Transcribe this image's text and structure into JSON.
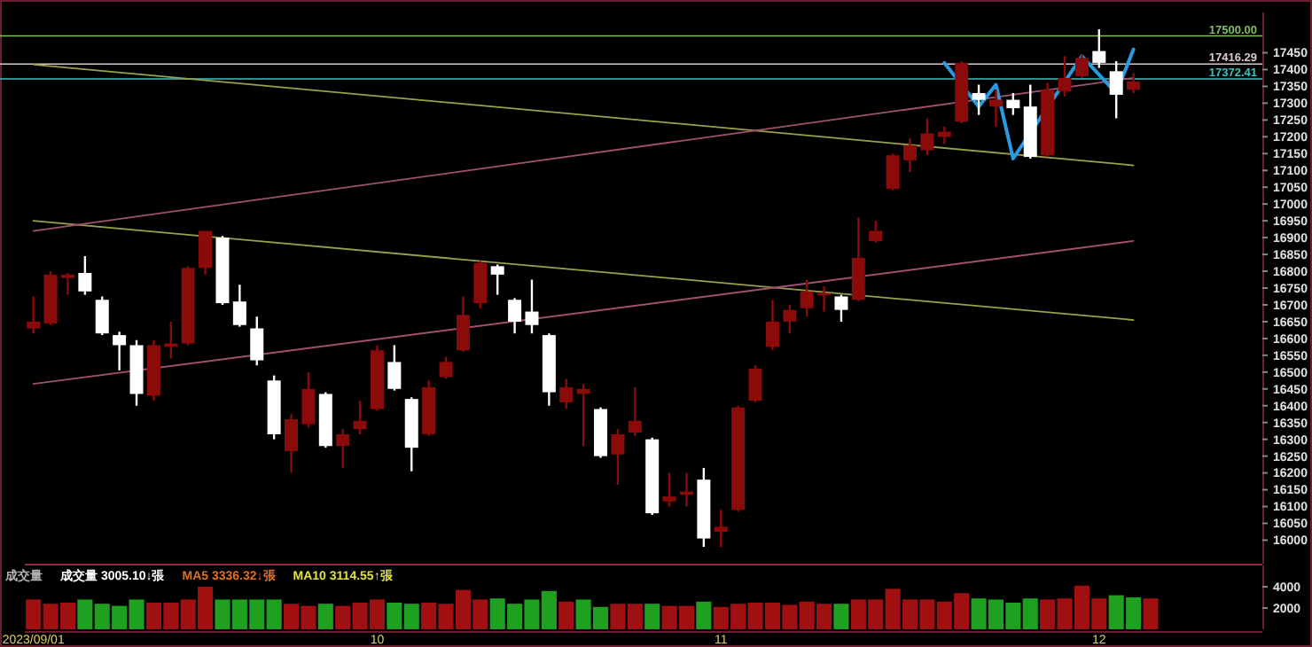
{
  "chart_data": [
    {
      "type": "candlestick",
      "categories": [
        null,
        null,
        null,
        null,
        null,
        null,
        null,
        null,
        null,
        null,
        null,
        null,
        null,
        null,
        null,
        null,
        null,
        null,
        null,
        null,
        null,
        null,
        null,
        null,
        null,
        null,
        null,
        null,
        null,
        null,
        null,
        null,
        null,
        null,
        null,
        null,
        null,
        null,
        null,
        null,
        null,
        null,
        null,
        null,
        null,
        null,
        null,
        null,
        null,
        null,
        null,
        null,
        null,
        null,
        null,
        null,
        null,
        null,
        null,
        null,
        null,
        null,
        null,
        null,
        null,
        null,
        null,
        null,
        null,
        null,
        null,
        null
      ],
      "ohlc": [
        [
          16630,
          16725,
          16615,
          16650
        ],
        [
          16645,
          16800,
          16640,
          16790
        ],
        [
          16780,
          16795,
          16730,
          16790
        ],
        [
          16795,
          16845,
          16730,
          16740
        ],
        [
          16715,
          16725,
          16610,
          16615
        ],
        [
          16610,
          16620,
          16505,
          16580
        ],
        [
          16580,
          16595,
          16400,
          16435
        ],
        [
          16430,
          16595,
          16415,
          16580
        ],
        [
          16575,
          16650,
          16540,
          16585
        ],
        [
          16585,
          16815,
          16580,
          16810
        ],
        [
          16810,
          16920,
          16790,
          16920
        ],
        [
          16900,
          16905,
          16700,
          16705
        ],
        [
          16710,
          16760,
          16635,
          16640
        ],
        [
          16630,
          16665,
          16520,
          16535
        ],
        [
          16475,
          16490,
          16300,
          16315
        ],
        [
          16265,
          16375,
          16200,
          16360
        ],
        [
          16345,
          16500,
          16335,
          16450
        ],
        [
          16435,
          16440,
          16275,
          16280
        ],
        [
          16280,
          16330,
          16215,
          16315
        ],
        [
          16330,
          16415,
          16315,
          16355
        ],
        [
          16390,
          16580,
          16385,
          16565
        ],
        [
          16530,
          16580,
          16445,
          16450
        ],
        [
          16420,
          16425,
          16205,
          16275
        ],
        [
          16315,
          16475,
          16310,
          16455
        ],
        [
          16485,
          16545,
          16480,
          16530
        ],
        [
          16565,
          16725,
          16560,
          16670
        ],
        [
          16705,
          16830,
          16690,
          16825
        ],
        [
          16815,
          16820,
          16730,
          16790
        ],
        [
          16715,
          16720,
          16615,
          16650
        ],
        [
          16680,
          16775,
          16615,
          16640
        ],
        [
          16610,
          16615,
          16400,
          16440
        ],
        [
          16410,
          16480,
          16390,
          16455
        ],
        [
          16435,
          16465,
          16280,
          16450
        ],
        [
          16390,
          16395,
          16245,
          16250
        ],
        [
          16255,
          16330,
          16165,
          16315
        ],
        [
          16320,
          16455,
          16310,
          16355
        ],
        [
          16300,
          16305,
          16075,
          16080
        ],
        [
          16115,
          16200,
          16100,
          16130
        ],
        [
          16135,
          16200,
          16100,
          16145
        ],
        [
          16180,
          16215,
          15980,
          16005
        ],
        [
          16025,
          16090,
          15980,
          16040
        ],
        [
          16090,
          16400,
          16085,
          16395
        ],
        [
          16415,
          16520,
          16410,
          16510
        ],
        [
          16575,
          16715,
          16565,
          16650
        ],
        [
          16650,
          16700,
          16615,
          16685
        ],
        [
          16690,
          16775,
          16665,
          16740
        ],
        [
          16730,
          16755,
          16680,
          16735
        ],
        [
          16725,
          16730,
          16650,
          16685
        ],
        [
          16715,
          16960,
          16710,
          16840
        ],
        [
          16890,
          16950,
          16885,
          16920
        ],
        [
          17045,
          17150,
          17040,
          17145
        ],
        [
          17130,
          17195,
          17095,
          17175
        ],
        [
          17160,
          17255,
          17145,
          17210
        ],
        [
          17200,
          17230,
          17180,
          17215
        ],
        [
          17245,
          17425,
          17240,
          17420
        ],
        [
          17330,
          17355,
          17265,
          17310
        ],
        [
          17290,
          17340,
          17230,
          17310
        ],
        [
          17310,
          17330,
          17265,
          17285
        ],
        [
          17290,
          17355,
          17135,
          17140
        ],
        [
          17145,
          17360,
          17140,
          17340
        ],
        [
          17335,
          17440,
          17320,
          17375
        ],
        [
          17380,
          17445,
          17375,
          17435
        ],
        [
          17455,
          17520,
          17405,
          17420
        ],
        [
          17395,
          17425,
          17255,
          17325
        ],
        [
          17340,
          17390,
          17330,
          17365
        ],
        null,
        null,
        null,
        null,
        null,
        null,
        null
      ],
      "series": [
        {
          "type": "line",
          "color": "#9aa04a",
          "values": [
            17415,
            null,
            null,
            null,
            null,
            null,
            null,
            null,
            null,
            null,
            null,
            null,
            null,
            null,
            null,
            null,
            null,
            null,
            null,
            null,
            null,
            null,
            null,
            null,
            null,
            null,
            null,
            null,
            null,
            null,
            null,
            null,
            null,
            null,
            null,
            null,
            null,
            null,
            null,
            null,
            null,
            null,
            null,
            null,
            null,
            null,
            null,
            null,
            null,
            null,
            null,
            null,
            null,
            null,
            null,
            null,
            null,
            null,
            null,
            null,
            null,
            null,
            null,
            null,
            17115,
            null,
            null,
            null,
            null,
            null,
            null,
            null
          ]
        },
        {
          "type": "line",
          "color": "#9aa04a",
          "values": [
            16950,
            null,
            null,
            null,
            null,
            null,
            null,
            null,
            null,
            null,
            null,
            null,
            null,
            null,
            null,
            null,
            null,
            null,
            null,
            null,
            null,
            null,
            null,
            null,
            null,
            null,
            null,
            null,
            null,
            null,
            null,
            null,
            null,
            null,
            null,
            null,
            null,
            null,
            null,
            null,
            null,
            null,
            null,
            null,
            null,
            null,
            null,
            null,
            null,
            null,
            null,
            null,
            null,
            null,
            null,
            null,
            null,
            null,
            null,
            null,
            null,
            null,
            null,
            null,
            16655,
            null,
            null,
            null,
            null,
            null,
            null,
            null
          ]
        },
        {
          "type": "line",
          "color": "#a05070",
          "values": [
            16920,
            null,
            null,
            null,
            null,
            null,
            null,
            null,
            null,
            null,
            null,
            null,
            null,
            null,
            null,
            null,
            null,
            null,
            null,
            null,
            null,
            null,
            null,
            null,
            null,
            null,
            null,
            null,
            null,
            null,
            null,
            null,
            null,
            null,
            null,
            null,
            null,
            null,
            null,
            null,
            null,
            null,
            null,
            null,
            null,
            null,
            null,
            null,
            null,
            null,
            null,
            null,
            null,
            null,
            null,
            null,
            null,
            null,
            null,
            null,
            null,
            null,
            null,
            null,
            17375,
            null,
            null,
            null,
            null,
            null,
            null,
            null
          ]
        },
        {
          "type": "line",
          "color": "#a05070",
          "values": [
            16465,
            null,
            null,
            null,
            null,
            null,
            null,
            null,
            null,
            null,
            null,
            null,
            null,
            null,
            null,
            null,
            null,
            null,
            null,
            null,
            null,
            null,
            null,
            null,
            null,
            null,
            null,
            null,
            null,
            null,
            null,
            null,
            null,
            null,
            null,
            null,
            null,
            null,
            null,
            null,
            null,
            null,
            null,
            null,
            null,
            null,
            null,
            null,
            null,
            null,
            null,
            null,
            null,
            null,
            null,
            null,
            null,
            null,
            null,
            null,
            null,
            null,
            null,
            null,
            16890,
            null,
            null,
            null,
            null,
            null,
            null,
            null
          ]
        },
        {
          "type": "line",
          "color": "#2a9ae0",
          "values": [
            null,
            null,
            null,
            null,
            null,
            null,
            null,
            null,
            null,
            null,
            null,
            null,
            null,
            null,
            null,
            null,
            null,
            null,
            null,
            null,
            null,
            null,
            null,
            null,
            null,
            null,
            null,
            null,
            null,
            null,
            null,
            null,
            null,
            null,
            null,
            null,
            null,
            null,
            null,
            null,
            null,
            null,
            null,
            null,
            null,
            null,
            null,
            null,
            null,
            null,
            null,
            null,
            null,
            17420,
            null,
            17290,
            17355,
            17135,
            null,
            null,
            null,
            17440,
            null,
            17330,
            17460,
            null,
            null,
            null,
            null,
            null,
            null,
            null
          ]
        }
      ],
      "ref_lines": [
        {
          "axis": "y",
          "value": 17500,
          "label": "17500.00",
          "color": "#7fbf5f"
        },
        {
          "axis": "y",
          "value": 17416.29,
          "label": "17416.29",
          "color": "#d8c8d0"
        },
        {
          "axis": "y",
          "value": 17372.41,
          "label": "17372.41",
          "color": "#40c0c0"
        }
      ],
      "ylim": [
        15930,
        17570
      ],
      "yticks": [
        16000,
        16050,
        16100,
        16150,
        16200,
        16250,
        16300,
        16350,
        16400,
        16450,
        16500,
        16550,
        16600,
        16650,
        16700,
        16750,
        16800,
        16850,
        16900,
        16950,
        17000,
        17050,
        17100,
        17150,
        17200,
        17250,
        17300,
        17350,
        17400,
        17450
      ],
      "tick_labels": "y"
    },
    {
      "type": "bar",
      "categories": [
        "2023/09/01",
        null,
        null,
        null,
        null,
        null,
        null,
        null,
        null,
        null,
        null,
        null,
        null,
        null,
        null,
        null,
        null,
        null,
        null,
        null,
        "10",
        null,
        null,
        null,
        null,
        null,
        null,
        null,
        null,
        null,
        null,
        null,
        null,
        null,
        null,
        null,
        null,
        null,
        null,
        null,
        "11",
        null,
        null,
        null,
        null,
        null,
        null,
        null,
        null,
        null,
        null,
        null,
        null,
        null,
        null,
        null,
        null,
        null,
        null,
        null,
        null,
        null,
        "12",
        null,
        null,
        null,
        null,
        null,
        null,
        null,
        null,
        null
      ],
      "values": [
        2800,
        2400,
        2500,
        2800,
        2400,
        2200,
        2800,
        2500,
        2500,
        2800,
        4000,
        2800,
        2800,
        2800,
        2800,
        2400,
        2200,
        2400,
        2200,
        2500,
        2800,
        2500,
        2400,
        2500,
        2400,
        3700,
        2800,
        2900,
        2400,
        2800,
        3600,
        2600,
        2800,
        2100,
        2400,
        2400,
        2400,
        2200,
        2200,
        2600,
        2100,
        2400,
        2500,
        2500,
        2300,
        2600,
        2400,
        2400,
        2800,
        2800,
        3800,
        2800,
        2800,
        2600,
        3400,
        2900,
        2800,
        2500,
        2900,
        2800,
        2900,
        4100,
        2900,
        3200,
        3000,
        2900,
        null,
        null,
        null,
        null,
        null,
        null
      ],
      "colors": [
        "#a01010",
        "#a01010",
        "#a01010",
        "#20a020",
        "#20a020",
        "#20a020",
        "#20a020",
        "#a01010",
        "#a01010",
        "#a01010",
        "#a01010",
        "#20a020",
        "#20a020",
        "#20a020",
        "#20a020",
        "#a01010",
        "#a01010",
        "#20a020",
        "#a01010",
        "#a01010",
        "#a01010",
        "#20a020",
        "#20a020",
        "#a01010",
        "#a01010",
        "#a01010",
        "#a01010",
        "#20a020",
        "#20a020",
        "#20a020",
        "#20a020",
        "#a01010",
        "#20a020",
        "#20a020",
        "#a01010",
        "#a01010",
        "#20a020",
        "#a01010",
        "#a01010",
        "#20a020",
        "#a01010",
        "#a01010",
        "#a01010",
        "#a01010",
        "#a01010",
        "#a01010",
        "#a01010",
        "#20a020",
        "#a01010",
        "#a01010",
        "#a01010",
        "#a01010",
        "#a01010",
        "#a01010",
        "#a01010",
        "#20a020",
        "#20a020",
        "#20a020",
        "#20a020",
        "#a01010",
        "#a01010",
        "#a01010",
        "#a01010",
        "#20a020",
        "#20a020",
        "#a01010",
        null,
        null,
        null,
        null,
        null,
        null
      ],
      "ylim": [
        0,
        6000
      ],
      "yticks": [
        2000,
        4000
      ],
      "annotations": [
        "成交量",
        "成交量 3005.10↓張",
        "MA5 3336.32↓張",
        "MA10 3114.55↑張"
      ]
    }
  ]
}
